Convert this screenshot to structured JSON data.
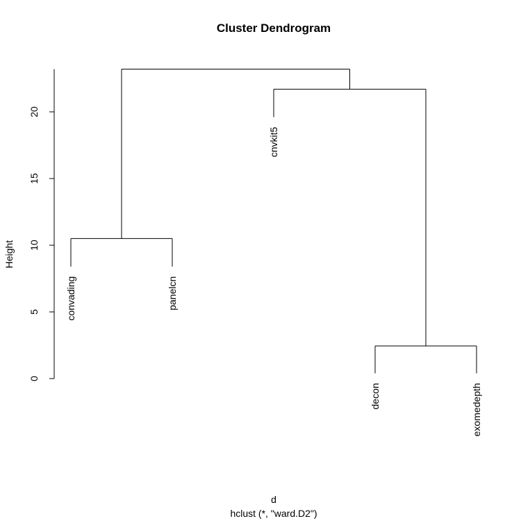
{
  "chart_data": {
    "type": "dendrogram",
    "title": "Cluster Dendrogram",
    "ylabel": "Height",
    "xlabel": "d",
    "sub": "hclust (*, \"ward.D2\")",
    "ylim": [
      0,
      23.2
    ],
    "y_ticks": [
      0,
      5,
      10,
      15,
      20
    ],
    "labels": [
      "convading",
      "panelcn",
      "cnvkit5",
      "decon",
      "exomedepth"
    ],
    "leaves": [
      {
        "label": "convading",
        "x": 1,
        "y": 8.4
      },
      {
        "label": "panelcn",
        "x": 2,
        "y": 8.4
      },
      {
        "label": "cnvkit5",
        "x": 3,
        "y": 19.6
      },
      {
        "label": "decon",
        "x": 4,
        "y": 0.4
      },
      {
        "label": "exomedepth",
        "x": 5,
        "y": 0.4
      }
    ],
    "merges": [
      {
        "left": "decon",
        "right": "exomedepth",
        "height": 2.45
      },
      {
        "left": "convading",
        "right": "panelcn",
        "height": 10.5
      },
      {
        "left": "cnvkit5",
        "right": "decon+exomedepth",
        "height": 21.7
      },
      {
        "left": "convading+panelcn",
        "right": "cnvkit5+decon+exomedepth",
        "height": 23.2
      }
    ],
    "segments": [
      [
        1,
        8.4,
        1,
        10.5
      ],
      [
        1,
        10.5,
        2,
        10.5
      ],
      [
        2,
        10.5,
        2,
        8.4
      ],
      [
        4,
        0.4,
        4,
        2.45
      ],
      [
        4,
        2.45,
        5,
        2.45
      ],
      [
        5,
        2.45,
        5,
        0.4
      ],
      [
        3,
        19.6,
        3,
        21.7
      ],
      [
        3,
        21.7,
        4.5,
        21.7
      ],
      [
        4.5,
        21.7,
        4.5,
        2.45
      ],
      [
        1.5,
        10.5,
        1.5,
        23.2
      ],
      [
        1.5,
        23.2,
        3.75,
        23.2
      ],
      [
        3.75,
        23.2,
        3.75,
        21.7
      ]
    ]
  }
}
